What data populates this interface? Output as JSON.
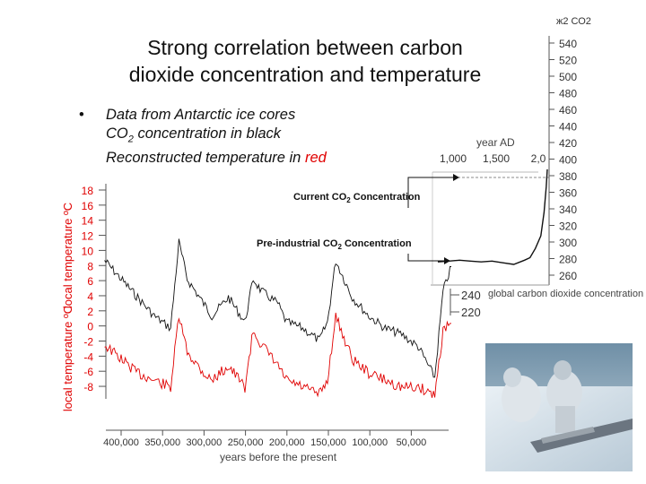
{
  "slide": {
    "title_line1": "Strong correlation between carbon",
    "title_line2": "dioxide concentration and temperature",
    "bullet_line1": "Data from Antarctic ice cores",
    "bullet_line2_pre": "CO",
    "bullet_line2_sub": "2",
    "bullet_line2_post": " concentration in black",
    "bullet_line3_pre": "Reconstructed temperature in ",
    "bullet_line3_red": "red"
  },
  "annotations": {
    "current_pre": "Current CO",
    "current_sub": "2",
    "current_post": " Concentration",
    "preind_pre": "Pre-industrial CO",
    "preind_sub": "2",
    "preind_post": " Concentration"
  },
  "colors": {
    "temperature": "#e00000",
    "co2": "#111111",
    "highlight": "#e00000"
  },
  "chart_data": [
    {
      "type": "line",
      "xlabel": "years before the present",
      "ylabel_top": "local temperature ºC",
      "ylabel_bottom": "local temperature ºC",
      "x_ticks": [
        "400,000",
        "350,000",
        "300,000",
        "250,000",
        "200,000",
        "150,000",
        "100,000",
        "50,000"
      ],
      "y_ticks_upper": [
        "18",
        "16",
        "14",
        "12",
        "10",
        "8",
        "6",
        "4",
        "2",
        "0",
        "-2",
        "-4",
        "-6",
        "-8"
      ],
      "grid": false,
      "series": [
        {
          "name": "",
          "color": "#111111",
          "y_range": [
            220,
            300
          ],
          "x": [
            420000,
            400000,
            380000,
            360000,
            340000,
            330000,
            320000,
            300000,
            290000,
            270000,
            250000,
            240000,
            230000,
            210000,
            200000,
            180000,
            160000,
            150000,
            140000,
            130000,
            120000,
            100000,
            80000,
            60000,
            40000,
            20000,
            10000,
            0
          ],
          "values": [
            285,
            270,
            255,
            240,
            230,
            300,
            270,
            250,
            240,
            255,
            235,
            270,
            260,
            250,
            235,
            230,
            220,
            235,
            285,
            270,
            255,
            240,
            230,
            225,
            215,
            190,
            260,
            280
          ]
        },
        {
          "name": "",
          "color": "#e00000",
          "y_range": [
            -9,
            3
          ],
          "x": [
            420000,
            400000,
            380000,
            360000,
            340000,
            330000,
            320000,
            300000,
            290000,
            270000,
            250000,
            240000,
            230000,
            210000,
            200000,
            180000,
            160000,
            150000,
            140000,
            130000,
            120000,
            100000,
            80000,
            60000,
            40000,
            20000,
            10000,
            0
          ],
          "values": [
            -2,
            -4,
            -6,
            -7,
            -8,
            2,
            -3,
            -6,
            -7,
            -5,
            -8,
            0,
            -2,
            -5,
            -7,
            -8,
            -9,
            -7,
            2,
            -1,
            -4,
            -6,
            -7,
            -8,
            -8,
            -9,
            0,
            1
          ]
        }
      ]
    },
    {
      "type": "line",
      "xlabel": "year AD",
      "x_ticks": [
        "1,000",
        "1,500",
        "2,0"
      ],
      "ylabel": "ж2 СО2",
      "y_ticks": [
        "540",
        "520",
        "500",
        "480",
        "460",
        "440",
        "420",
        "400",
        "380",
        "360",
        "340",
        "320",
        "300",
        "280",
        "260"
      ],
      "ylim": [
        260,
        540
      ],
      "series": [
        {
          "name": "",
          "color": "#111111",
          "x": [
            1000,
            1100,
            1200,
            1300,
            1400,
            1500,
            1600,
            1700,
            1800,
            1850,
            1900,
            1950,
            1980,
            2000,
            2010
          ],
          "values": [
            280,
            281,
            282,
            281,
            280,
            281,
            279,
            277,
            282,
            285,
            296,
            311,
            339,
            369,
            390
          ]
        }
      ]
    },
    {
      "type": "scatter",
      "ylabel": "global carbon dioxide concentration ppmv",
      "y_ticks": [
        "240",
        "220"
      ]
    }
  ]
}
